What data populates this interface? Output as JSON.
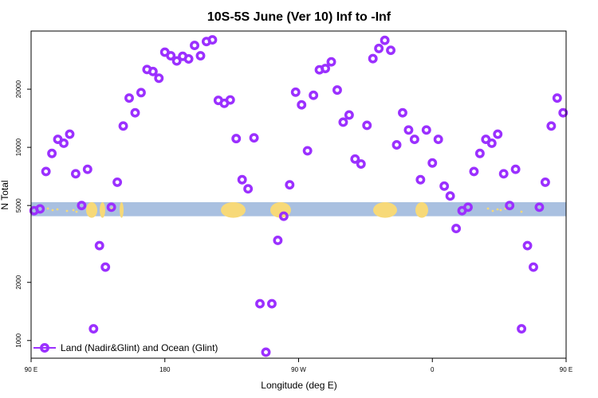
{
  "chart_data": {
    "type": "scatter",
    "title": "10S-5S June (Ver 10)   Inf to -Inf",
    "xlabel": "Longitude (deg E)",
    "ylabel": "N Total",
    "xlim": [
      90,
      450
    ],
    "ylim": [
      810,
      40000
    ],
    "y_scale": "log",
    "x_ticks": [
      {
        "value": 90,
        "label": "90 E"
      },
      {
        "value": 180,
        "label": "180"
      },
      {
        "value": 270,
        "label": "90 W"
      },
      {
        "value": 360,
        "label": "0"
      },
      {
        "value": 450,
        "label": "90 E"
      }
    ],
    "y_ticks": [
      {
        "value": 1000,
        "label": "1000"
      },
      {
        "value": 2000,
        "label": "2000"
      },
      {
        "value": 5000,
        "label": "5000"
      },
      {
        "value": 10000,
        "label": "10000"
      },
      {
        "value": 20000,
        "label": "20000"
      }
    ],
    "grid": false,
    "legend": {
      "position": "bottom-left",
      "entries": [
        "Land (Nadir&Glint) and Ocean (Glint)"
      ]
    },
    "series": [
      {
        "name": "Land (Nadir&Glint) and Ocean (Glint)",
        "color": "#9b30ff",
        "x": [
          92,
          96,
          100,
          104,
          108,
          112,
          116,
          120,
          124,
          128,
          132,
          136,
          140,
          144,
          148,
          152,
          156,
          160,
          164,
          168,
          172,
          176,
          180,
          184,
          188,
          192,
          196,
          200,
          204,
          208,
          212,
          216,
          220,
          224,
          228,
          232,
          236,
          240,
          244,
          248,
          252,
          256,
          260,
          264,
          268,
          272,
          276,
          280,
          284,
          288,
          292,
          296,
          300,
          304,
          308,
          312,
          316,
          320,
          324,
          328,
          332,
          336,
          340,
          344,
          348,
          352,
          356,
          360,
          364,
          368,
          372,
          376,
          380,
          384,
          388,
          392,
          396,
          400,
          404,
          408,
          412,
          416,
          420,
          424,
          428,
          432,
          436,
          440,
          444,
          448
        ],
        "y": [
          4700,
          4800,
          7500,
          9300,
          11000,
          10500,
          11700,
          7300,
          5000,
          7700,
          1150,
          3100,
          2400,
          4900,
          6600,
          12900,
          18000,
          15100,
          19200,
          25300,
          24700,
          22800,
          31100,
          29800,
          28000,
          29600,
          28700,
          33700,
          29800,
          35300,
          36000,
          17500,
          16900,
          17600,
          11100,
          6800,
          6100,
          11200,
          1550,
          870,
          1550,
          3300,
          4400,
          6400,
          19300,
          16600,
          9600,
          18600,
          25200,
          25600,
          27700,
          19800,
          13500,
          14700,
          8700,
          8200,
          13000,
          28800,
          32500,
          35800,
          31800,
          10300,
          15100,
          12300,
          11000,
          6800,
          12300,
          8300,
          11000,
          6300,
          5600,
          3800,
          4700,
          4900,
          7500,
          9300,
          11000,
          10500,
          11700,
          7300,
          5000,
          7700,
          1150,
          3100,
          2400,
          4900,
          6600,
          12900,
          18000,
          15100
        ]
      }
    ],
    "background_band": {
      "y_range": [
        4400,
        5200
      ],
      "ocean_color": "#a9c0e0",
      "land_color": "#f7d978"
    }
  }
}
